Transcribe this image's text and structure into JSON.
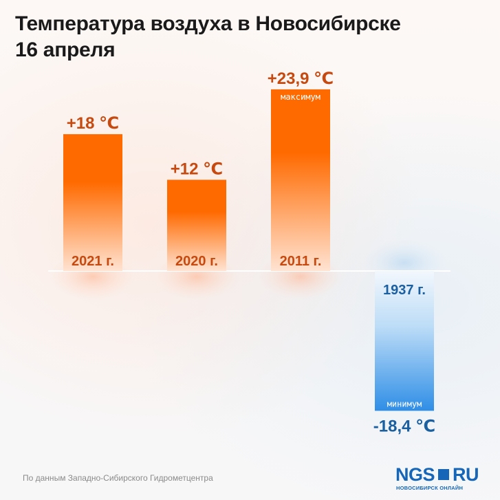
{
  "title_line1": "Температура воздуха в Новосибирске",
  "title_line2": "16 апреля",
  "chart_data": {
    "type": "bar",
    "categories": [
      "2021 г.",
      "2020 г.",
      "2011 г.",
      "1937 г."
    ],
    "values": [
      18,
      12,
      23.9,
      -18.4
    ],
    "value_labels": [
      "+18 ℃",
      "+12 ℃",
      "+23,9 ℃",
      "-18,4 ℃"
    ],
    "annotations": [
      "",
      "",
      "максимум",
      "минимум"
    ],
    "ylim": [
      -20,
      24
    ],
    "grid": false,
    "colors": {
      "positive_top": "#ff6a00",
      "positive_bottom": "#ffe3d2",
      "positive_label": "#c64a10",
      "negative_top": "#f2f7fc",
      "negative_bottom": "#2f8ee6",
      "negative_label": "#1a5fa0"
    }
  },
  "footer": {
    "source": "По данным Западно-Сибирского Гидрометцентра",
    "logo_left": "NGS",
    "logo_right": "RU",
    "logo_sub": "НОВОСИБИРСК ОНЛАЙН"
  }
}
